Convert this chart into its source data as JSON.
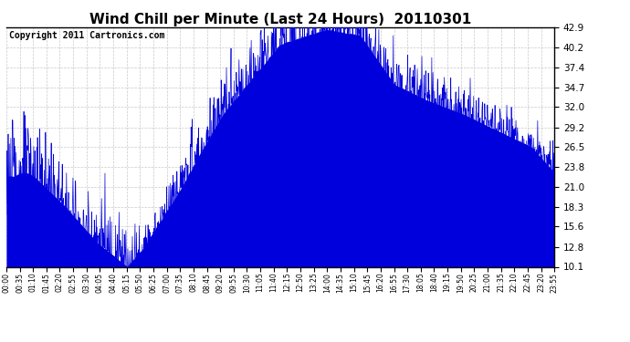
{
  "title": "Wind Chill per Minute (Last 24 Hours)  20110301",
  "copyright_text": "Copyright 2011 Cartronics.com",
  "y_min": 10.1,
  "y_max": 42.9,
  "y_ticks": [
    10.1,
    12.8,
    15.6,
    18.3,
    21.0,
    23.8,
    26.5,
    29.2,
    32.0,
    34.7,
    37.4,
    40.2,
    42.9
  ],
  "x_tick_labels": [
    "00:00",
    "00:35",
    "01:10",
    "01:45",
    "02:20",
    "02:55",
    "03:30",
    "04:05",
    "04:40",
    "05:15",
    "05:50",
    "06:25",
    "07:00",
    "07:35",
    "08:10",
    "08:45",
    "09:20",
    "09:55",
    "10:30",
    "11:05",
    "11:40",
    "12:15",
    "12:50",
    "13:25",
    "14:00",
    "14:35",
    "15:10",
    "15:45",
    "16:20",
    "16:55",
    "17:30",
    "18:05",
    "18:40",
    "19:15",
    "19:50",
    "20:25",
    "21:00",
    "21:35",
    "22:10",
    "22:45",
    "23:20",
    "23:55"
  ],
  "line_color": "#0000dd",
  "background_color": "#ffffff",
  "grid_color": "#bbbbbb",
  "title_fontsize": 11,
  "copyright_fontsize": 7,
  "figwidth": 6.9,
  "figheight": 3.75,
  "dpi": 100
}
